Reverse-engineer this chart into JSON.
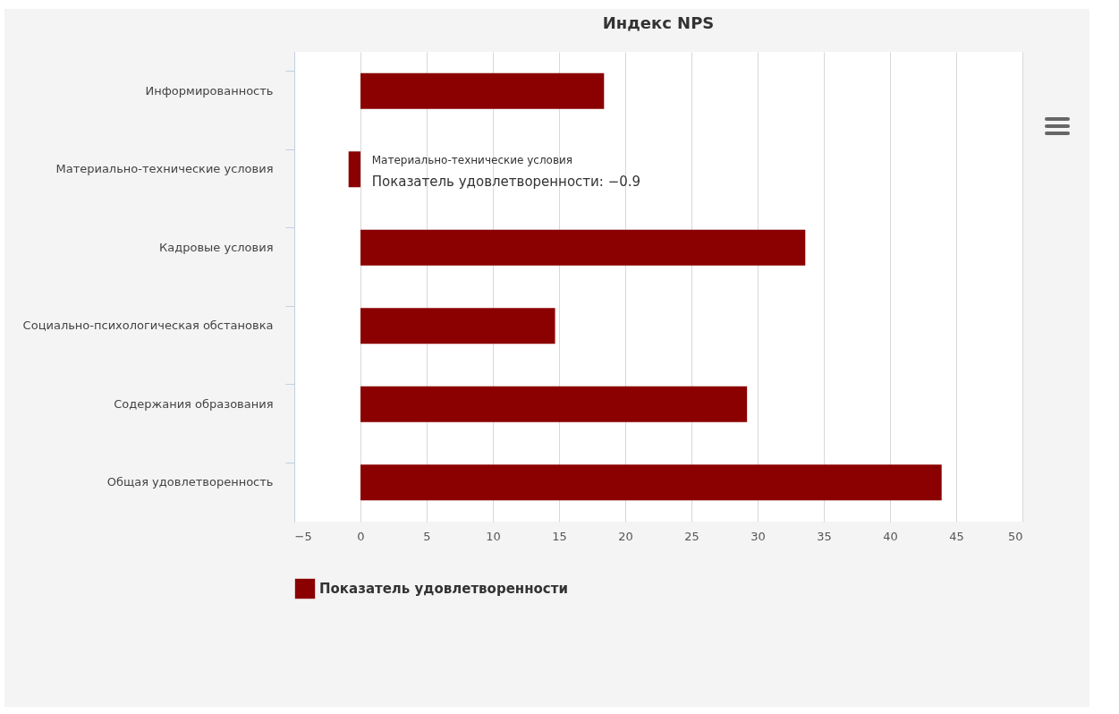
{
  "chart_data": {
    "type": "bar",
    "orientation": "horizontal",
    "title": "Индекс NPS",
    "categories": [
      "Информированность",
      "Материально-технические условия",
      "Кадровые условия",
      "Социально-психологическая обстановка",
      "Содержания образования",
      "Общая удовлетворенность"
    ],
    "series": [
      {
        "name": "Показатель удовлетворенности",
        "color": "#8b0000",
        "values": [
          18.4,
          -0.9,
          33.6,
          14.7,
          29.2,
          43.9
        ]
      }
    ],
    "xlim": [
      -5,
      50
    ],
    "xticks": [
      -5,
      0,
      5,
      10,
      15,
      20,
      25,
      30,
      35,
      40,
      45,
      50
    ],
    "grid": "x",
    "legend": "bottom",
    "annotations": [
      {
        "text": "Материально-технические условия",
        "x": -0.9,
        "y": "Материально-технические условия"
      },
      {
        "text": "Показатель удовлетворенности: −0.9",
        "x": -0.9,
        "y": "Материально-технические условия"
      }
    ]
  }
}
